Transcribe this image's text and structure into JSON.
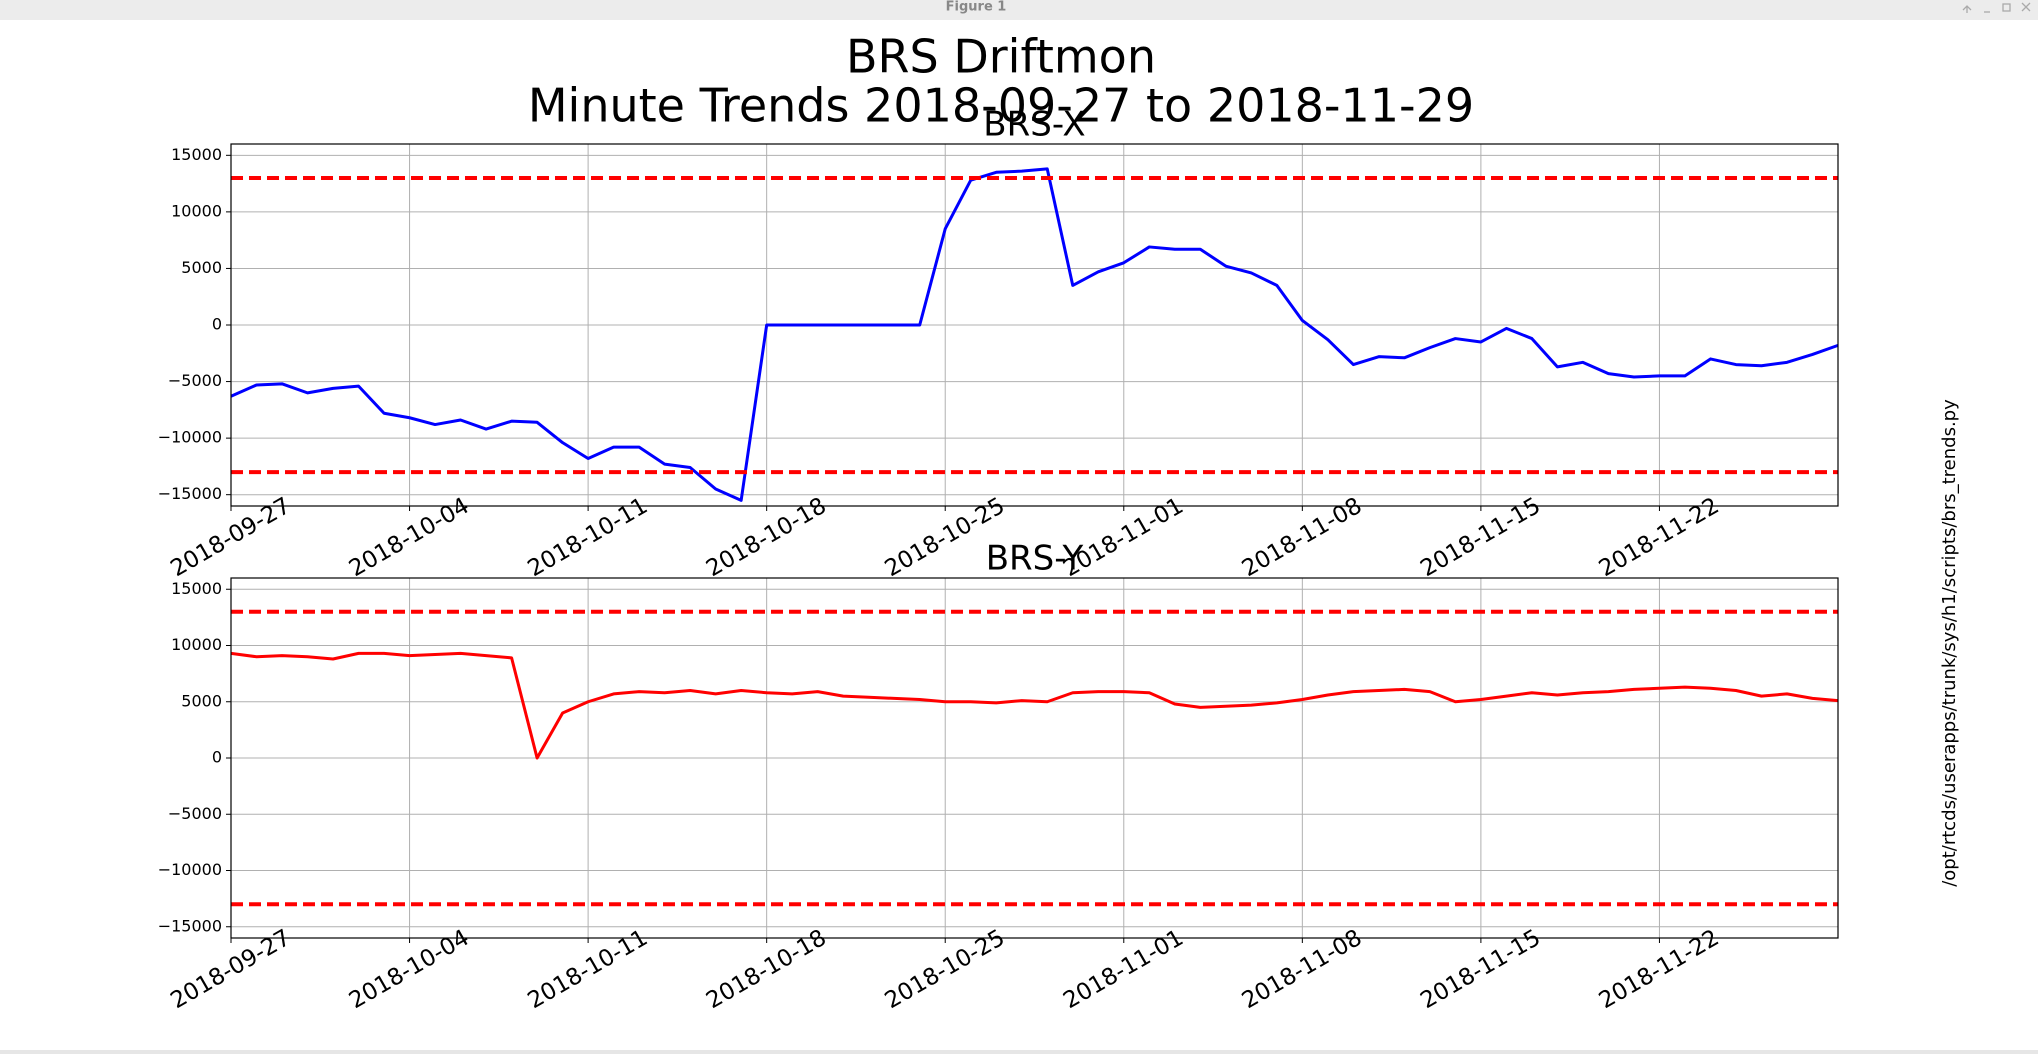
{
  "window_title": "Figure 1",
  "figure_title": "BRS Driftmon",
  "figure_subtitle": "Minute Trends 2018-09-27  to 2018-11-29",
  "side_text": "/opt/rtcds/userapps/trunk/sys/h1/scripts/brs_trends.py",
  "chart_data": [
    {
      "type": "line",
      "title": "BRS-X",
      "x": [
        "2018-09-27",
        "2018-09-28",
        "2018-09-29",
        "2018-09-30",
        "2018-10-01",
        "2018-10-02",
        "2018-10-03",
        "2018-10-04",
        "2018-10-05",
        "2018-10-06",
        "2018-10-07",
        "2018-10-08",
        "2018-10-09",
        "2018-10-10",
        "2018-10-11",
        "2018-10-12",
        "2018-10-13",
        "2018-10-14",
        "2018-10-15",
        "2018-10-16",
        "2018-10-17",
        "2018-10-18",
        "2018-10-19",
        "2018-10-20",
        "2018-10-21",
        "2018-10-22",
        "2018-10-23",
        "2018-10-24",
        "2018-10-25",
        "2018-10-26",
        "2018-10-27",
        "2018-10-28",
        "2018-10-29",
        "2018-10-30",
        "2018-10-31",
        "2018-11-01",
        "2018-11-02",
        "2018-11-03",
        "2018-11-04",
        "2018-11-05",
        "2018-11-06",
        "2018-11-07",
        "2018-11-08",
        "2018-11-09",
        "2018-11-10",
        "2018-11-11",
        "2018-11-12",
        "2018-11-13",
        "2018-11-14",
        "2018-11-15",
        "2018-11-16",
        "2018-11-17",
        "2018-11-18",
        "2018-11-19",
        "2018-11-20",
        "2018-11-21",
        "2018-11-22",
        "2018-11-23",
        "2018-11-24",
        "2018-11-25",
        "2018-11-26",
        "2018-11-27",
        "2018-11-28",
        "2018-11-29"
      ],
      "series": [
        {
          "color": "#0000ff",
          "values": [
            -6300,
            -5300,
            -5200,
            -6000,
            -5600,
            -5400,
            -7800,
            -8200,
            -8800,
            -8400,
            -9200,
            -8500,
            -8600,
            -10400,
            -11800,
            -10800,
            -10800,
            -12300,
            -12600,
            -14500,
            -15500,
            0,
            0,
            0,
            0,
            0,
            0,
            0,
            8500,
            12800,
            13500,
            13600,
            13800,
            3500,
            4700,
            5500,
            6900,
            6700,
            6700,
            5200,
            4600,
            3500,
            400,
            -1300,
            -3500,
            -2800,
            -2900,
            -2000,
            -1200,
            -1500,
            -300,
            -1200,
            -3700,
            -3300,
            -4300,
            -4600,
            -4500,
            -4500,
            -3000,
            -3500,
            -3600,
            -3300,
            -2600,
            -1800
          ]
        }
      ],
      "xlim": [
        "2018-09-27",
        "2018-11-29"
      ],
      "xticks": [
        "2018-09-27",
        "2018-10-04",
        "2018-10-11",
        "2018-10-18",
        "2018-10-25",
        "2018-11-01",
        "2018-11-08",
        "2018-11-15",
        "2018-11-22"
      ],
      "ylim": [
        -16000,
        16000
      ],
      "yticks": [
        {
          "value": -15000,
          "label": "−15000"
        },
        {
          "value": -10000,
          "label": "−10000"
        },
        {
          "value": -5000,
          "label": "−5000"
        },
        0,
        5000,
        10000,
        15000
      ],
      "thresholds": [
        13000,
        -13000
      ],
      "threshold_color": "#ff0000",
      "grid": true
    },
    {
      "type": "line",
      "title": "BRS-Y",
      "x": [
        "2018-09-27",
        "2018-09-28",
        "2018-09-29",
        "2018-09-30",
        "2018-10-01",
        "2018-10-02",
        "2018-10-03",
        "2018-10-04",
        "2018-10-05",
        "2018-10-06",
        "2018-10-07",
        "2018-10-08",
        "2018-10-09",
        "2018-10-10",
        "2018-10-11",
        "2018-10-12",
        "2018-10-13",
        "2018-10-14",
        "2018-10-15",
        "2018-10-16",
        "2018-10-17",
        "2018-10-18",
        "2018-10-19",
        "2018-10-20",
        "2018-10-21",
        "2018-10-22",
        "2018-10-23",
        "2018-10-24",
        "2018-10-25",
        "2018-10-26",
        "2018-10-27",
        "2018-10-28",
        "2018-10-29",
        "2018-10-30",
        "2018-10-31",
        "2018-11-01",
        "2018-11-02",
        "2018-11-03",
        "2018-11-04",
        "2018-11-05",
        "2018-11-06",
        "2018-11-07",
        "2018-11-08",
        "2018-11-09",
        "2018-11-10",
        "2018-11-11",
        "2018-11-12",
        "2018-11-13",
        "2018-11-14",
        "2018-11-15",
        "2018-11-16",
        "2018-11-17",
        "2018-11-18",
        "2018-11-19",
        "2018-11-20",
        "2018-11-21",
        "2018-11-22",
        "2018-11-23",
        "2018-11-24",
        "2018-11-25",
        "2018-11-26",
        "2018-11-27",
        "2018-11-28",
        "2018-11-29"
      ],
      "series": [
        {
          "color": "#ff0000",
          "values": [
            9300,
            9000,
            9100,
            9000,
            8800,
            9300,
            9300,
            9100,
            9200,
            9300,
            9100,
            8900,
            0,
            4000,
            5000,
            5700,
            5900,
            5800,
            6000,
            5700,
            6000,
            5800,
            5700,
            5900,
            5500,
            5400,
            5300,
            5200,
            5000,
            5000,
            4900,
            5100,
            5000,
            5800,
            5900,
            5900,
            5800,
            4800,
            4500,
            4600,
            4700,
            4900,
            5200,
            5600,
            5900,
            6000,
            6100,
            5900,
            5000,
            5200,
            5500,
            5800,
            5600,
            5800,
            5900,
            6100,
            6200,
            6300,
            6200,
            6000,
            5500,
            5700,
            5300,
            5100
          ]
        }
      ],
      "xlim": [
        "2018-09-27",
        "2018-11-29"
      ],
      "xticks": [
        "2018-09-27",
        "2018-10-04",
        "2018-10-11",
        "2018-10-18",
        "2018-10-25",
        "2018-11-01",
        "2018-11-08",
        "2018-11-15",
        "2018-11-22"
      ],
      "ylim": [
        -16000,
        16000
      ],
      "yticks": [
        {
          "value": -15000,
          "label": "−15000"
        },
        {
          "value": -10000,
          "label": "−10000"
        },
        {
          "value": -5000,
          "label": "−5000"
        },
        0,
        5000,
        10000,
        15000
      ],
      "thresholds": [
        13000,
        -13000
      ],
      "threshold_color": "#ff0000",
      "grid": true
    }
  ]
}
